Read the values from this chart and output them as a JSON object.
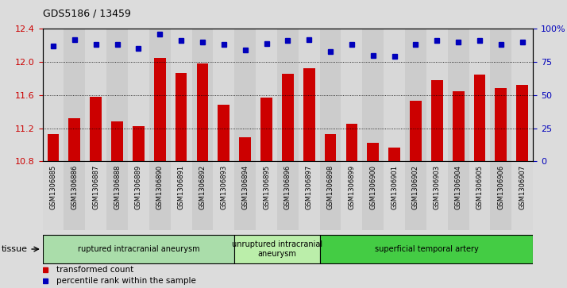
{
  "title": "GDS5186 / 13459",
  "samples": [
    "GSM1306885",
    "GSM1306886",
    "GSM1306887",
    "GSM1306888",
    "GSM1306889",
    "GSM1306890",
    "GSM1306891",
    "GSM1306892",
    "GSM1306893",
    "GSM1306894",
    "GSM1306895",
    "GSM1306896",
    "GSM1306897",
    "GSM1306898",
    "GSM1306899",
    "GSM1306900",
    "GSM1306901",
    "GSM1306902",
    "GSM1306903",
    "GSM1306904",
    "GSM1306905",
    "GSM1306906",
    "GSM1306907"
  ],
  "bar_values": [
    11.13,
    11.32,
    11.58,
    11.28,
    11.22,
    12.05,
    11.87,
    11.98,
    11.48,
    11.09,
    11.57,
    11.86,
    11.92,
    11.13,
    11.25,
    11.02,
    10.97,
    11.53,
    11.78,
    11.65,
    11.85,
    11.68,
    11.72
  ],
  "dot_values": [
    87,
    92,
    88,
    88,
    85,
    96,
    91,
    90,
    88,
    84,
    89,
    91,
    92,
    83,
    88,
    80,
    79,
    88,
    91,
    90,
    91,
    88,
    90
  ],
  "ylim_left": [
    10.8,
    12.4
  ],
  "ylim_right": [
    0,
    100
  ],
  "yticks_left": [
    10.8,
    11.2,
    11.6,
    12.0,
    12.4
  ],
  "yticks_right": [
    0,
    25,
    50,
    75,
    100
  ],
  "bar_color": "#CC0000",
  "dot_color": "#0000BB",
  "bg_color": "#E0E0E0",
  "col_bg_even": "#D0D0D0",
  "col_bg_odd": "#C8C8C8",
  "groups": [
    {
      "label": "ruptured intracranial aneurysm",
      "start": 0,
      "end": 9,
      "color": "#AADDAA"
    },
    {
      "label": "unruptured intracranial\naneurysm",
      "start": 9,
      "end": 13,
      "color": "#BBEEAA"
    },
    {
      "label": "superficial temporal artery",
      "start": 13,
      "end": 23,
      "color": "#44CC44"
    }
  ],
  "legend_bar_label": "transformed count",
  "legend_dot_label": "percentile rank within the sample",
  "tissue_label": "tissue"
}
